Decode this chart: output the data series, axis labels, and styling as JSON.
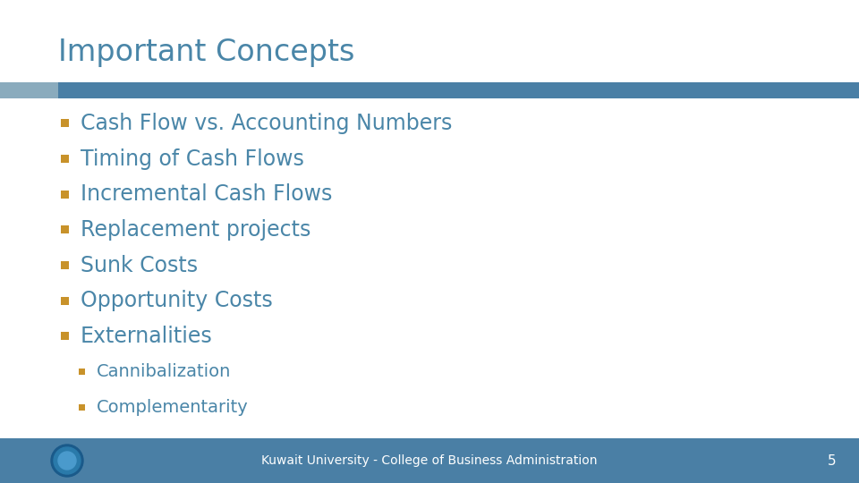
{
  "title": "Important Concepts",
  "title_color": "#4a86a8",
  "title_fontsize": 24,
  "header_bar_color": "#4a7fa5",
  "header_bar_left_accent": "#8aabbd",
  "background_color": "#ffffff",
  "footer_color": "#4a7fa5",
  "footer_text": "Kuwait University - College of Business Administration",
  "footer_text_color": "#ffffff",
  "footer_fontsize": 10,
  "page_number": "5",
  "bullet_color": "#c8922a",
  "bullet_text_color": "#4a86a8",
  "bullet_fontsize": 17,
  "sub_bullet_fontsize": 14,
  "fig_width": 9.6,
  "fig_height": 5.4,
  "dpi": 100,
  "items": [
    {
      "text": "Cash Flow vs. Accounting Numbers",
      "level": 0
    },
    {
      "text": "Timing of Cash Flows",
      "level": 0
    },
    {
      "text": "Incremental Cash Flows",
      "level": 0
    },
    {
      "text": "Replacement projects",
      "level": 0
    },
    {
      "text": "Sunk Costs",
      "level": 0
    },
    {
      "text": "Opportunity Costs",
      "level": 0
    },
    {
      "text": "Externalities",
      "level": 0
    },
    {
      "text": "Cannibalization",
      "level": 1
    },
    {
      "text": "Complementarity",
      "level": 1
    }
  ]
}
